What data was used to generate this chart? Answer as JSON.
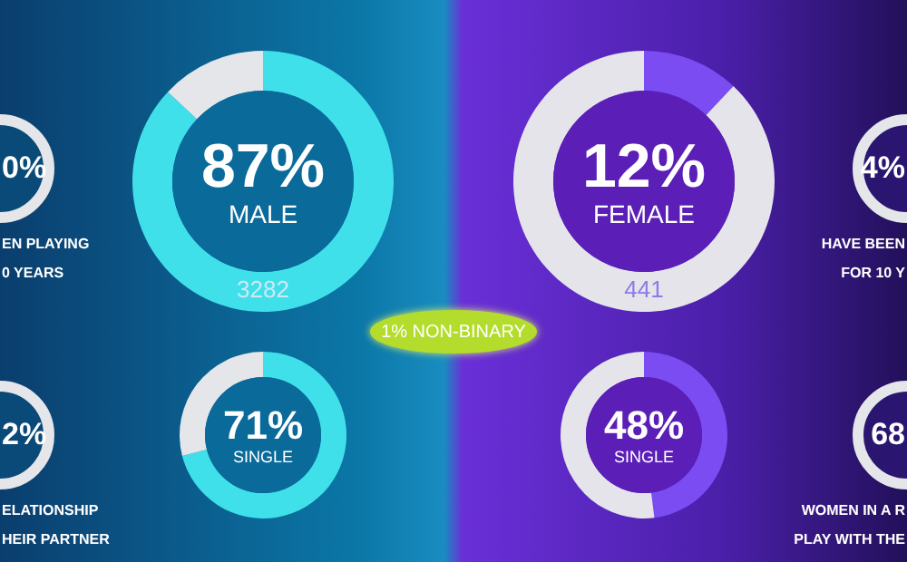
{
  "chart_data": [
    {
      "type": "other",
      "annotations": [
        "0%",
        "EN PLAYING",
        "0 YEARS"
      ]
    },
    {
      "type": "donut",
      "title": "MALE",
      "categories": [
        null,
        null
      ],
      "values": [
        87,
        13
      ],
      "colors": [
        "#3fe0ea",
        "#e4e6ea"
      ],
      "value_labels": [
        "87%",
        null
      ],
      "annotations": [
        "3282"
      ]
    },
    {
      "type": "donut",
      "title": "FEMALE",
      "categories": [
        null,
        null
      ],
      "values": [
        12,
        88
      ],
      "colors": [
        "#7a4cf2",
        "#e4e4ea"
      ],
      "value_labels": [
        "12%",
        null
      ],
      "annotations": [
        "441"
      ]
    },
    {
      "type": "other",
      "annotations": [
        "1% NON-BINARY"
      ]
    },
    {
      "type": "donut",
      "title": "SINGLE",
      "categories": [
        null,
        null
      ],
      "values": [
        71,
        29
      ],
      "colors": [
        "#3fe0ea",
        "#e4e6ea"
      ],
      "value_labels": [
        "71%",
        null
      ]
    },
    {
      "type": "donut",
      "title": "SINGLE",
      "categories": [
        null,
        null
      ],
      "values": [
        48,
        52
      ],
      "colors": [
        "#7a4cf2",
        "#e4e4ea"
      ],
      "value_labels": [
        "48%",
        null
      ]
    },
    {
      "type": "other",
      "annotations": [
        "2%",
        "ELATIONSHIP",
        "HEIR PARTNER"
      ]
    },
    {
      "type": "other",
      "annotations": [
        "4%",
        "HAVE BEEN",
        "FOR 10 Y"
      ]
    },
    {
      "type": "other",
      "annotations": [
        "68",
        "WOMEN IN A R",
        "PLAY WITH THE"
      ]
    }
  ]
}
